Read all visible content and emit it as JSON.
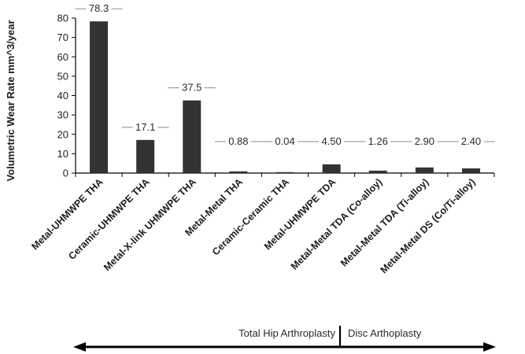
{
  "chart_data": {
    "type": "bar",
    "ylabel": "Volumetric Wear Rate mm^3/year",
    "xlabel": "",
    "ylim": [
      0,
      80
    ],
    "yticks": [
      0,
      10,
      20,
      30,
      40,
      50,
      60,
      70,
      80
    ],
    "grid": false,
    "legend": "none",
    "categories": [
      "Metal-UHMWPE THA",
      "Ceramic-UHMWPE THA",
      "Metal-X-link UHMWPE THA",
      "Metal-Metal THA",
      "Ceramic-Ceramic THA",
      "Metal-UHMWPE TDA",
      "Metal-Metal TDA (Co-alloy)",
      "Metal-Metal TDA (Ti-alloy)",
      "Metal-Metal DS (Co/Ti-alloy)"
    ],
    "values": [
      78.3,
      17.1,
      37.5,
      0.88,
      0.04,
      4.5,
      1.26,
      2.9,
      2.4
    ],
    "data_labels": [
      "78.3",
      "17.1",
      "37.5",
      "0.88",
      "0.04",
      "4.50",
      "1.26",
      "2.90",
      "2.40"
    ],
    "groups": [
      {
        "label": "Total Hip Arthroplasty"
      },
      {
        "label": "Disc Arthoplasty"
      }
    ],
    "colors": {
      "bar": "#333333",
      "axis": "#000000",
      "label_leader": "#888888"
    }
  }
}
